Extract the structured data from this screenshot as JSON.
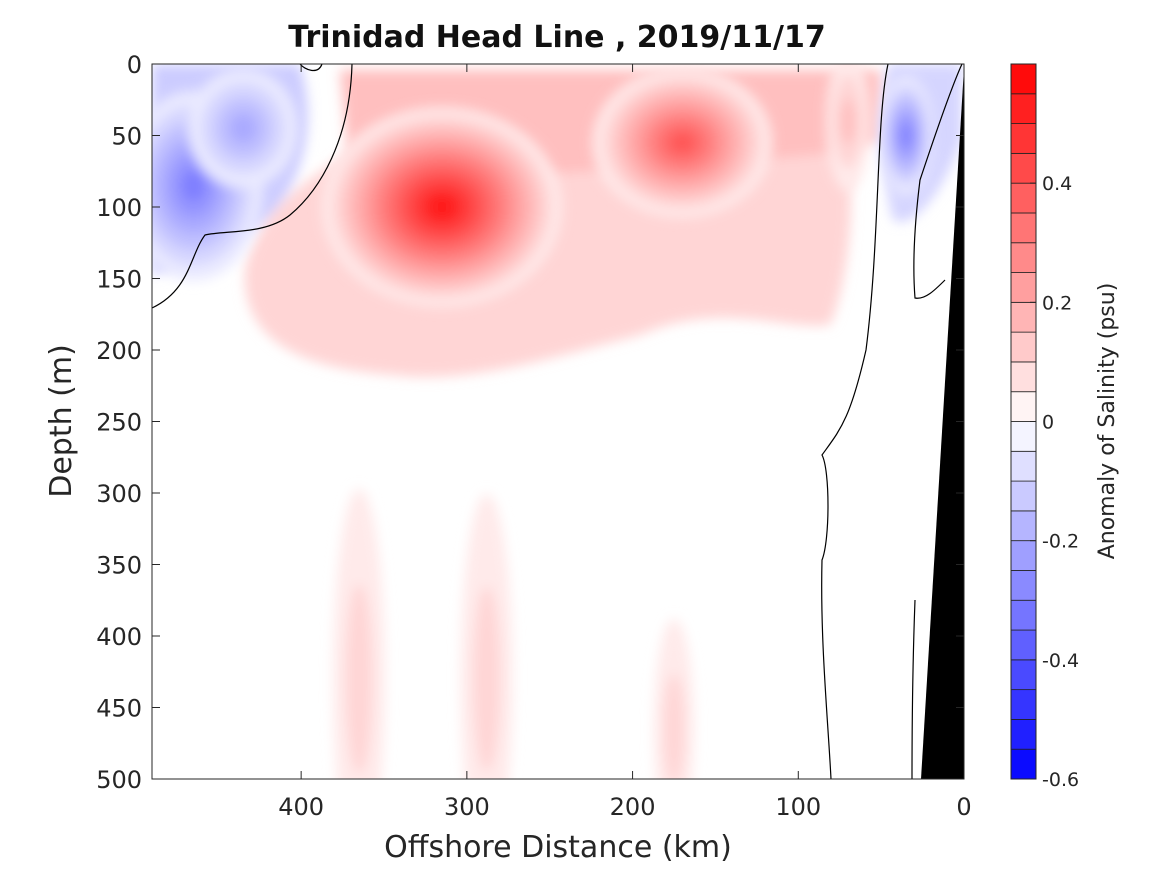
{
  "chart_data": {
    "type": "heatmap",
    "title": "Trinidad Head Line , 2019/11/17",
    "xlabel": "Offshore Distance (km)",
    "ylabel": "Depth (m)",
    "colorbar_label": "Anomaly of Salinity (psu)",
    "xlim": [
      490,
      0
    ],
    "ylim": [
      0,
      500
    ],
    "x_reversed": true,
    "y_reversed": true,
    "x_ticks": [
      400,
      300,
      200,
      100,
      0
    ],
    "y_ticks": [
      0,
      50,
      100,
      150,
      200,
      250,
      300,
      350,
      400,
      450,
      500
    ],
    "colorbar_range": [
      -0.6,
      0.6
    ],
    "colorbar_step": 0.05,
    "colorbar_ticks": [
      -0.6,
      -0.4,
      -0.2,
      0,
      0.2,
      0.4
    ],
    "colormap": {
      "negative_max": "#0000ff",
      "zero": "#ffffff",
      "positive_max": "#ff0000"
    },
    "land_mask_color": "#000000",
    "zero_contour_color": "#000000",
    "anomaly_features": [
      {
        "x": 315,
        "depth": 100,
        "value": 0.55
      },
      {
        "x": 170,
        "depth": 55,
        "value": 0.4
      },
      {
        "x": 70,
        "depth": 40,
        "value": 0.15
      },
      {
        "x": 465,
        "depth": 85,
        "value": -0.3
      },
      {
        "x": 435,
        "depth": 45,
        "value": -0.2
      },
      {
        "x": 35,
        "depth": 50,
        "value": -0.3
      },
      {
        "x": 365,
        "depth": 430,
        "value": 0.08
      },
      {
        "x": 288,
        "depth": 430,
        "value": 0.08
      },
      {
        "x": 175,
        "depth": 465,
        "value": 0.08
      }
    ]
  }
}
